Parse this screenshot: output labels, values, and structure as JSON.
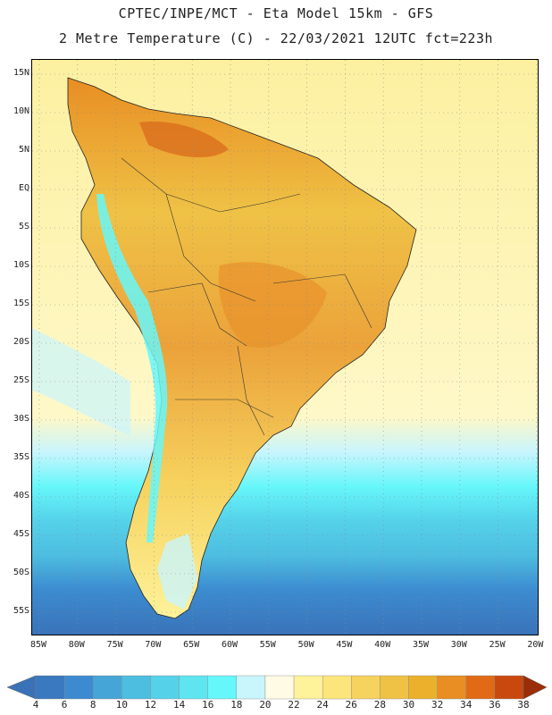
{
  "title_line1": "CPTEC/INPE/MCT -  Eta Model 15km - GFS",
  "title_line2": "2 Metre Temperature (C) - 22/03/2021 12UTC fct=223h",
  "lat_labels": [
    "15N",
    "10N",
    "5N",
    "EQ",
    "5S",
    "10S",
    "15S",
    "20S",
    "25S",
    "30S",
    "35S",
    "40S",
    "45S",
    "50S",
    "55S"
  ],
  "lon_labels": [
    "85W",
    "80W",
    "75W",
    "70W",
    "65W",
    "60W",
    "55W",
    "50W",
    "45W",
    "40W",
    "35W",
    "30W",
    "25W",
    "20W"
  ],
  "colorbar": {
    "ticks": [
      "4",
      "6",
      "8",
      "10",
      "12",
      "14",
      "16",
      "18",
      "20",
      "22",
      "24",
      "26",
      "28",
      "30",
      "32",
      "34",
      "36",
      "38"
    ],
    "colors": [
      "#3a78c0",
      "#3c8bd0",
      "#45a5d6",
      "#4dbde0",
      "#55d2ea",
      "#5ee5f0",
      "#66f7fa",
      "#c9f5fd",
      "#fffbe4",
      "#fef29a",
      "#fce57a",
      "#f6d25e",
      "#efc246",
      "#ebb12c",
      "#e88e22",
      "#e06a16",
      "#c8480e",
      "#a8330a"
    ],
    "below_color": "#3a72b8",
    "above_color": "#9a2e08"
  },
  "colors": {
    "frame": "#000000",
    "ocean_warm": "#fef3a6",
    "land": "#ecb74e"
  }
}
